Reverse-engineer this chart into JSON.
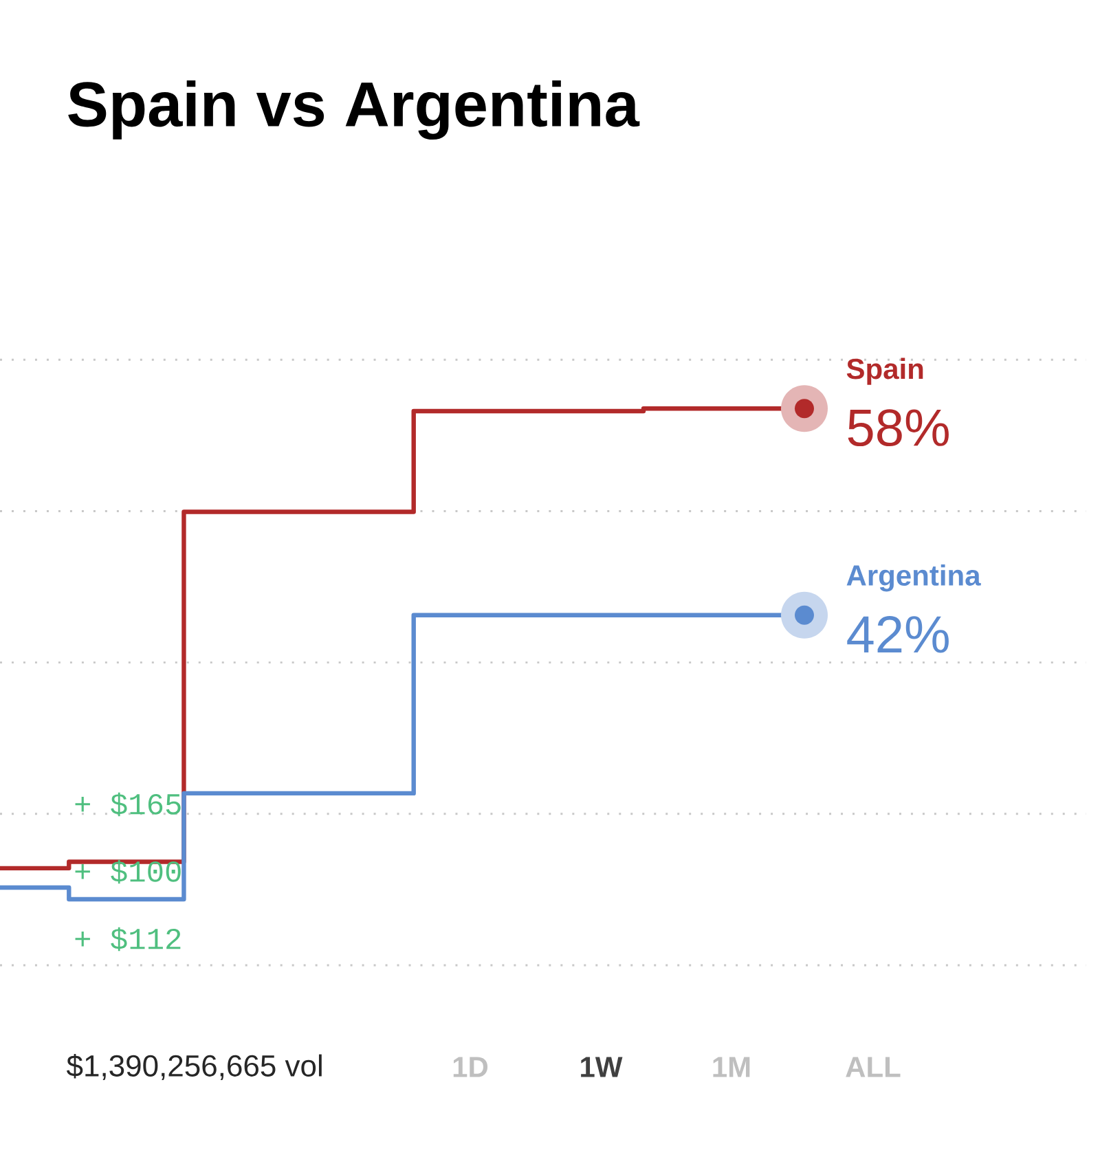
{
  "chart_data": {
    "type": "step",
    "title": "Spain vs Argentina",
    "categories": [
      null,
      null,
      null,
      null,
      null,
      null,
      null,
      null,
      null,
      null,
      null,
      null,
      null,
      null,
      null,
      null,
      null,
      null,
      null,
      null,
      null,
      null,
      null,
      null,
      null,
      null,
      null,
      null,
      null,
      null,
      null,
      null,
      null,
      null,
      null,
      null
    ],
    "series": [
      {
        "name": "Spain",
        "color": "#b22a2a",
        "values": [
          22.4,
          22.4,
          22.4,
          22.9,
          22.9,
          22.9,
          22.9,
          22.9,
          50,
          50,
          50,
          50,
          50,
          50,
          50,
          50,
          50,
          50,
          57.8,
          57.8,
          57.8,
          57.8,
          57.8,
          57.8,
          57.8,
          57.8,
          57.8,
          57.8,
          58,
          58,
          58,
          58,
          58,
          58,
          58,
          58
        ],
        "value_labels": [
          null,
          null,
          null,
          null,
          null,
          null,
          null,
          null,
          null,
          null,
          null,
          null,
          null,
          null,
          null,
          null,
          null,
          null,
          null,
          null,
          null,
          null,
          null,
          null,
          null,
          null,
          null,
          null,
          null,
          null,
          null,
          null,
          null,
          null,
          null,
          "58%"
        ]
      },
      {
        "name": "Argentina",
        "color": "#5b8bd0",
        "values": [
          20.9,
          20.9,
          20.9,
          20,
          20,
          20,
          20,
          20,
          28.2,
          28.2,
          28.2,
          28.2,
          28.2,
          28.2,
          28.2,
          28.2,
          28.2,
          28.2,
          42,
          42,
          42,
          42,
          42,
          42,
          42,
          42,
          42,
          42,
          42,
          42,
          42,
          42,
          42,
          42,
          42,
          42
        ],
        "value_labels": [
          null,
          null,
          null,
          null,
          null,
          null,
          null,
          null,
          null,
          null,
          null,
          null,
          null,
          null,
          null,
          null,
          null,
          null,
          null,
          null,
          null,
          null,
          null,
          null,
          null,
          null,
          null,
          null,
          null,
          null,
          null,
          null,
          null,
          null,
          null,
          "42%"
        ]
      }
    ],
    "grid": "y",
    "marker": "none",
    "line_style": "solid",
    "annotations": [
      "+ $165",
      "+ $100",
      "+ $112",
      "$1,390,256,665 vol",
      "1D",
      "1W",
      "1M",
      "ALL"
    ]
  }
}
